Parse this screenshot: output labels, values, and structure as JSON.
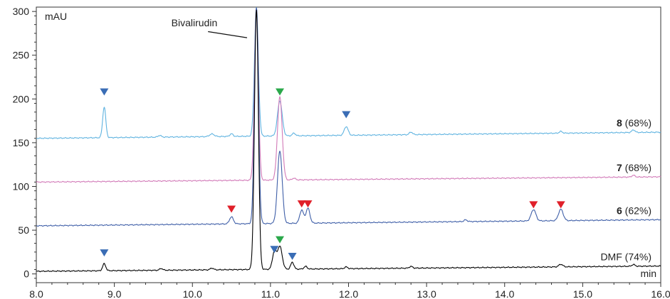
{
  "chart_data": {
    "type": "line",
    "x_unit": "min",
    "y_unit": "mAU",
    "xlim": [
      8.0,
      16.0
    ],
    "ylim": [
      -10,
      305
    ],
    "x_ticks": [
      "8.0",
      "9.0",
      "10.0",
      "11.0",
      "12.0",
      "13.0",
      "14.0",
      "15.0",
      "16.0"
    ],
    "x_tick_values": [
      8,
      9,
      10,
      11,
      12,
      13,
      14,
      15,
      16
    ],
    "y_ticks": [
      "0",
      "50",
      "100",
      "150",
      "200",
      "250",
      "300"
    ],
    "y_tick_values": [
      0,
      50,
      100,
      150,
      200,
      250,
      300
    ],
    "annotation": {
      "text": "Bivalirudin",
      "points_to": [
        10.82,
        280
      ]
    },
    "colors": {
      "blue_marker": "#3a6db5",
      "red_marker": "#e0202a",
      "green_marker": "#2aa84a"
    },
    "series": [
      {
        "label_bold": "8",
        "label_rest": " (68%)",
        "color": "#5fb3e0",
        "baseline": [
          [
            8.0,
            155
          ],
          [
            16.0,
            162
          ]
        ],
        "peaks": [
          [
            8.87,
            35,
            0.02
          ],
          [
            9.58,
            2,
            0.02
          ],
          [
            10.25,
            3,
            0.03
          ],
          [
            10.5,
            3,
            0.02
          ],
          [
            10.82,
            147,
            0.025
          ],
          [
            11.12,
            40,
            0.03
          ],
          [
            11.3,
            3,
            0.02
          ],
          [
            11.97,
            10,
            0.025
          ],
          [
            12.8,
            3,
            0.02
          ],
          [
            14.72,
            2,
            0.02
          ],
          [
            15.65,
            3,
            0.02
          ]
        ],
        "markers": [
          {
            "x": 8.87,
            "y": 208,
            "color": "blue"
          },
          {
            "x": 11.97,
            "y": 182,
            "color": "blue"
          }
        ]
      },
      {
        "label_bold": "7",
        "label_rest": " (68%)",
        "color": "#d27ab8",
        "baseline": [
          [
            8.0,
            105
          ],
          [
            16.0,
            111
          ]
        ],
        "peaks": [
          [
            10.82,
            197,
            0.025
          ],
          [
            11.12,
            95,
            0.03
          ],
          [
            11.3,
            2,
            0.02
          ],
          [
            15.65,
            2,
            0.02
          ]
        ],
        "markers": [
          {
            "x": 11.12,
            "y": 208,
            "color": "green"
          }
        ]
      },
      {
        "label_bold": "6",
        "label_rest": " (62%)",
        "color": "#3f5fa8",
        "baseline": [
          [
            8.0,
            55
          ],
          [
            16.0,
            62
          ]
        ],
        "peaks": [
          [
            10.5,
            8,
            0.025
          ],
          [
            10.82,
            247,
            0.025
          ],
          [
            11.12,
            83,
            0.03
          ],
          [
            11.4,
            15,
            0.025
          ],
          [
            11.48,
            17,
            0.025
          ],
          [
            14.37,
            13,
            0.03
          ],
          [
            14.72,
            13,
            0.03
          ],
          [
            13.5,
            2,
            0.02
          ]
        ],
        "markers": [
          {
            "x": 10.5,
            "y": 74,
            "color": "red"
          },
          {
            "x": 11.4,
            "y": 80,
            "color": "red"
          },
          {
            "x": 11.48,
            "y": 80,
            "color": "red"
          },
          {
            "x": 14.37,
            "y": 79,
            "color": "red"
          },
          {
            "x": 14.72,
            "y": 79,
            "color": "red"
          }
        ]
      },
      {
        "label_bold": "",
        "label_rest": "DMF (74%)",
        "color": "#000000",
        "baseline": [
          [
            8.0,
            3
          ],
          [
            16.0,
            9
          ]
        ],
        "peaks": [
          [
            8.87,
            8,
            0.02
          ],
          [
            9.6,
            2,
            0.02
          ],
          [
            10.25,
            2,
            0.02
          ],
          [
            10.82,
            297,
            0.025
          ],
          [
            11.05,
            20,
            0.025
          ],
          [
            11.12,
            26,
            0.03
          ],
          [
            11.28,
            8,
            0.02
          ],
          [
            11.45,
            3,
            0.02
          ],
          [
            11.97,
            2,
            0.02
          ],
          [
            12.8,
            2,
            0.02
          ],
          [
            14.72,
            3,
            0.025
          ],
          [
            15.65,
            2,
            0.02
          ]
        ],
        "markers": [
          {
            "x": 8.87,
            "y": 24,
            "color": "blue"
          },
          {
            "x": 11.05,
            "y": 28,
            "color": "blue"
          },
          {
            "x": 11.12,
            "y": 39,
            "color": "green"
          },
          {
            "x": 11.28,
            "y": 20,
            "color": "blue"
          }
        ]
      }
    ]
  }
}
